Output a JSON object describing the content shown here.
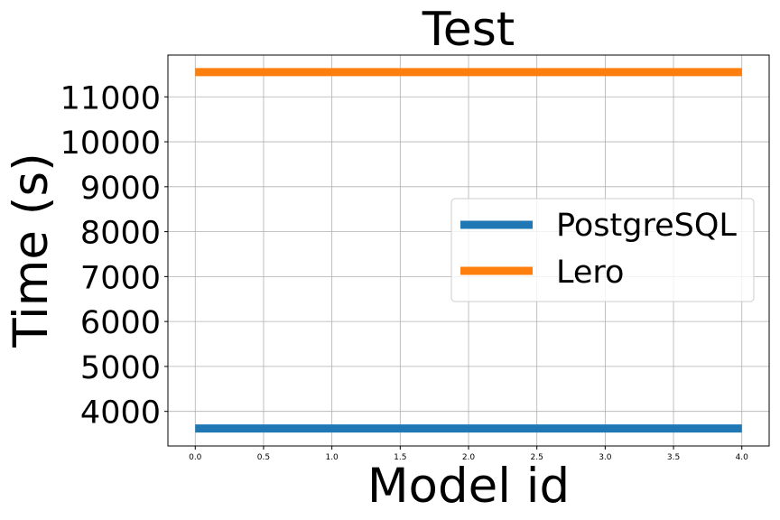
{
  "chart_data": {
    "type": "line",
    "title": "Test",
    "xlabel": "Model id",
    "ylabel": "Time (s)",
    "x": [
      0.0,
      4.0
    ],
    "xlim": [
      -0.2,
      4.2
    ],
    "ylim": [
      3230,
      11930
    ],
    "xticks": [
      0.0,
      0.5,
      1.0,
      1.5,
      2.0,
      2.5,
      3.0,
      3.5,
      4.0
    ],
    "xtick_labels": [
      "0.0",
      "0.5",
      "1.0",
      "1.5",
      "2.0",
      "2.5",
      "3.0",
      "3.5",
      "4.0"
    ],
    "yticks": [
      4000,
      5000,
      6000,
      7000,
      8000,
      9000,
      10000,
      11000
    ],
    "ytick_labels": [
      "4000",
      "5000",
      "6000",
      "7000",
      "8000",
      "9000",
      "10000",
      "11000"
    ],
    "grid": true,
    "legend_position": "center-right",
    "series": [
      {
        "name": "PostgreSQL",
        "color": "#1f77b4",
        "values": [
          3620,
          3620
        ]
      },
      {
        "name": "Lero",
        "color": "#ff7f0e",
        "values": [
          11550,
          11550
        ]
      }
    ]
  }
}
